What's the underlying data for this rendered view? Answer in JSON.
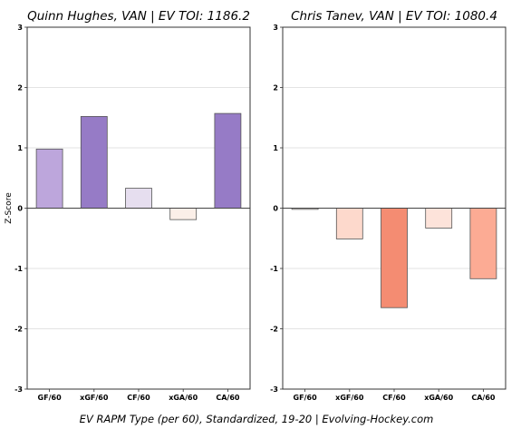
{
  "chart_data": [
    {
      "type": "bar",
      "title": "Quinn Hughes, VAN  |  EV TOI: 1186.2",
      "ylabel": "Z-Score",
      "ylim": [
        -3,
        3
      ],
      "yticks": [
        "-3",
        "-2",
        "-1",
        "0",
        "1",
        "2",
        "3"
      ],
      "grid": true,
      "categories": [
        "GF/60",
        "xGF/60",
        "CF/60",
        "xGA/60",
        "CA/60"
      ],
      "values": [
        0.98,
        1.52,
        0.33,
        -0.19,
        1.57
      ],
      "colors": [
        "#bda6dc",
        "#967bc6",
        "#e6deef",
        "#fbefe8",
        "#967bc6"
      ]
    },
    {
      "type": "bar",
      "title": "Chris Tanev, VAN  |  EV TOI: 1080.4",
      "ylabel": "",
      "ylim": [
        -3,
        3
      ],
      "yticks": [
        "-3",
        "-2",
        "-1",
        "0",
        "1",
        "2",
        "3"
      ],
      "grid": true,
      "categories": [
        "GF/60",
        "xGF/60",
        "CF/60",
        "xGA/60",
        "CA/60"
      ],
      "values": [
        -0.02,
        -0.51,
        -1.65,
        -0.33,
        -1.17
      ],
      "colors": [
        "#fdf6f2",
        "#fdd9cc",
        "#f48c72",
        "#fde3da",
        "#fcab94"
      ]
    }
  ],
  "footer": {
    "text": "EV RAPM Type (per 60), Standardized, 19-20    |    Evolving-Hockey.com"
  }
}
